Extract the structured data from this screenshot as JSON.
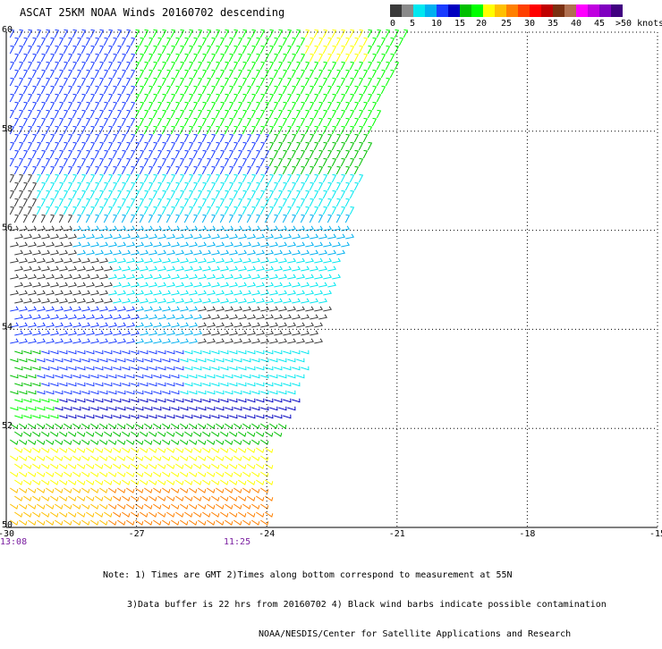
{
  "title": "ASCAT 25KM NOAA Winds 20160702 descending",
  "legend": {
    "colors": [
      "#3a3a3a",
      "#8a8a8a",
      "#00e8f0",
      "#00b0f0",
      "#1a3cff",
      "#0000c0",
      "#00c000",
      "#00ff00",
      "#ffff00",
      "#ffc000",
      "#ff8000",
      "#ff4000",
      "#ff0000",
      "#c00000",
      "#7a3010",
      "#b07050",
      "#ff00ff",
      "#c000e0",
      "#8000c0",
      "#400080"
    ],
    "labels": [
      "0",
      "5",
      "10",
      "15",
      "20",
      "25",
      "30",
      "35",
      "40",
      "45",
      ">50 knots"
    ]
  },
  "map": {
    "lon_labels": [
      "-30",
      "-27",
      "-24",
      "-21",
      "-18",
      "-15"
    ],
    "lat_labels": [
      "60",
      "58",
      "56",
      "54",
      "52",
      "50"
    ],
    "times": {
      "left": "13:08",
      "mid": "11:25"
    }
  },
  "notes": {
    "line1": "Note: 1) Times are GMT 2)Times along bottom correspond to measurement at 55N",
    "line2": "3)Data buffer is 22 hrs from 20160702 4) Black wind barbs indicate possible contamination",
    "line3": "NOAA/NESDIS/Center for Satellite Applications and Research"
  }
}
